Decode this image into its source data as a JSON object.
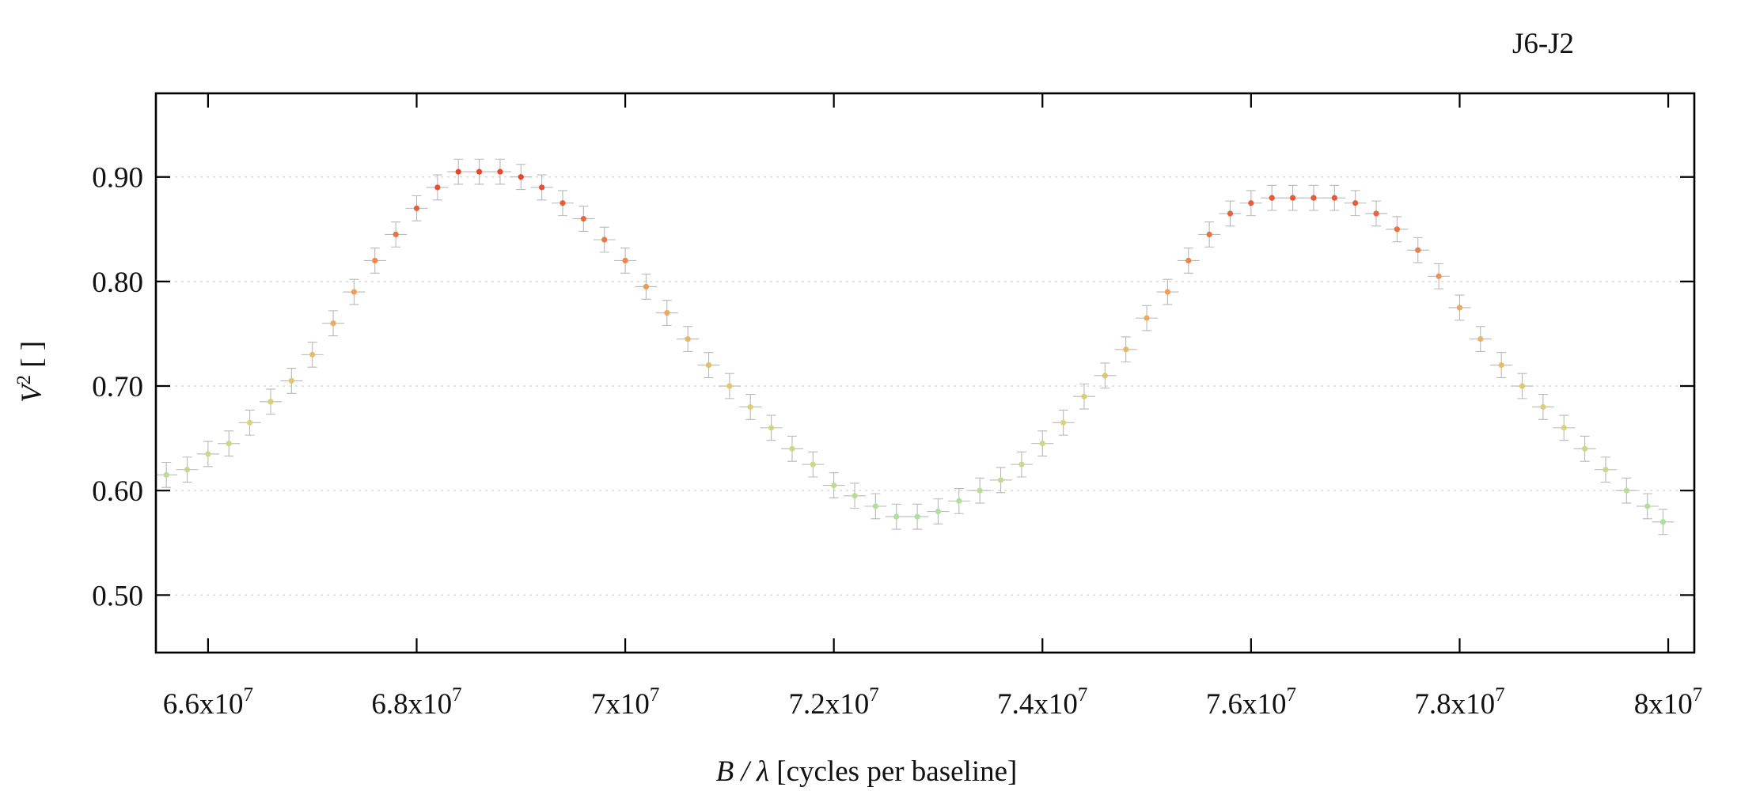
{
  "chart_data": {
    "type": "scatter",
    "title": "J6-J2",
    "xlabel": {
      "main": "B / λ",
      "suffix": " [cycles per baseline]"
    },
    "ylabel": {
      "main": "V",
      "sup": "2",
      "suffix": " [ ]"
    },
    "xlim": [
      65500000,
      80250000
    ],
    "ylim": [
      0.445,
      0.98
    ],
    "x_ticks": [
      {
        "value": 66000000,
        "mantissa": "6.6x10",
        "exp": "7"
      },
      {
        "value": 68000000,
        "mantissa": "6.8x10",
        "exp": "7"
      },
      {
        "value": 70000000,
        "mantissa": "7x10",
        "exp": "7"
      },
      {
        "value": 72000000,
        "mantissa": "7.2x10",
        "exp": "7"
      },
      {
        "value": 74000000,
        "mantissa": "7.4x10",
        "exp": "7"
      },
      {
        "value": 76000000,
        "mantissa": "7.6x10",
        "exp": "7"
      },
      {
        "value": 78000000,
        "mantissa": "7.8x10",
        "exp": "7"
      },
      {
        "value": 80000000,
        "mantissa": "8x10",
        "exp": "7"
      }
    ],
    "y_ticks": [
      {
        "value": 0.5,
        "label": "0.50"
      },
      {
        "value": 0.6,
        "label": "0.60"
      },
      {
        "value": 0.7,
        "label": "0.70"
      },
      {
        "value": 0.8,
        "label": "0.80"
      },
      {
        "value": 0.9,
        "label": "0.90"
      }
    ],
    "grid": {
      "horizontal": true,
      "style": "dotted"
    },
    "error_bar_color": "#b9b9b9",
    "point_color_scale": {
      "low_value": 0.55,
      "high_value": 0.9,
      "colors": [
        "#9fe3a8",
        "#d9d67a",
        "#f2a25c",
        "#e8472b"
      ]
    },
    "series": [
      {
        "x": [
          65600000,
          65800000,
          66000000,
          66200000,
          66400000,
          66600000,
          66800000,
          67000000,
          67200000,
          67400000,
          67600000,
          67800000,
          68000000,
          68200000,
          68400000,
          68600000,
          68800000,
          69000000,
          69200000,
          69400000,
          69600000,
          69800000,
          70000000,
          70200000,
          70400000,
          70600000,
          70800000,
          71000000,
          71200000,
          71400000,
          71600000,
          71800000,
          72000000,
          72200000,
          72400000,
          72600000,
          72800000,
          73000000,
          73200000,
          73400000,
          73600000,
          73800000,
          74000000,
          74200000,
          74400000,
          74600000,
          74800000,
          75000000,
          75200000,
          75400000,
          75600000,
          75800000,
          76000000,
          76200000,
          76400000,
          76600000,
          76800000,
          77000000,
          77200000,
          77400000,
          77600000,
          77800000,
          78000000,
          78200000,
          78400000,
          78600000,
          78800000,
          79000000,
          79200000,
          79400000,
          79600000,
          79800000,
          79950000
        ],
        "y": [
          0.615,
          0.62,
          0.635,
          0.645,
          0.665,
          0.685,
          0.705,
          0.73,
          0.76,
          0.79,
          0.82,
          0.845,
          0.87,
          0.89,
          0.905,
          0.905,
          0.905,
          0.9,
          0.89,
          0.875,
          0.86,
          0.84,
          0.82,
          0.795,
          0.77,
          0.745,
          0.72,
          0.7,
          0.68,
          0.66,
          0.64,
          0.625,
          0.605,
          0.595,
          0.585,
          0.575,
          0.575,
          0.58,
          0.59,
          0.6,
          0.61,
          0.625,
          0.645,
          0.665,
          0.69,
          0.71,
          0.735,
          0.765,
          0.79,
          0.82,
          0.845,
          0.865,
          0.875,
          0.88,
          0.88,
          0.88,
          0.88,
          0.875,
          0.865,
          0.85,
          0.83,
          0.805,
          0.775,
          0.745,
          0.72,
          0.7,
          0.68,
          0.66,
          0.64,
          0.62,
          0.6,
          0.585,
          0.57
        ],
        "y_error": 0.012
      }
    ]
  }
}
